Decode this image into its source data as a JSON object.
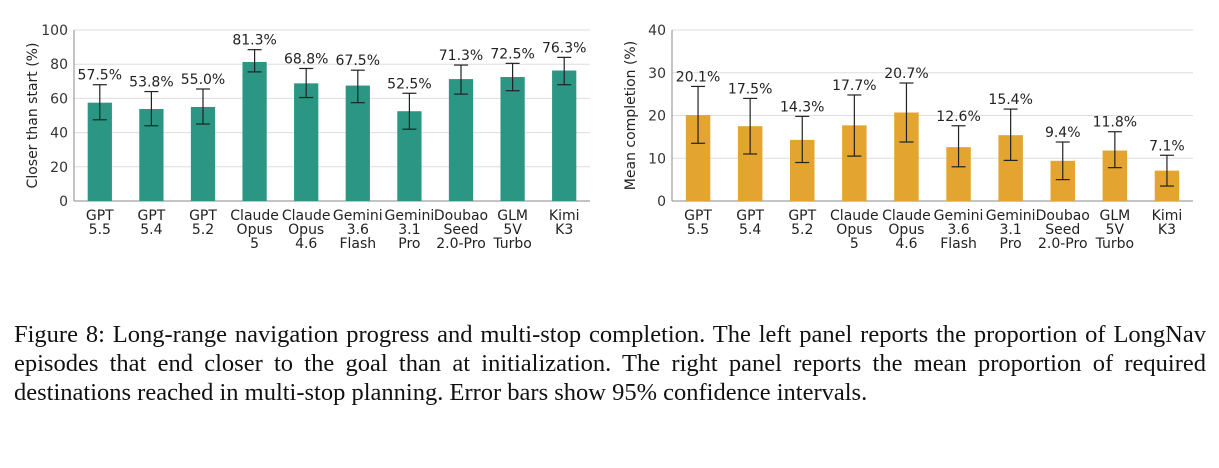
{
  "chart_data": [
    {
      "type": "bar",
      "categories": [
        [
          "GPT",
          "5.5"
        ],
        [
          "GPT",
          "5.4"
        ],
        [
          "GPT",
          "5.2"
        ],
        [
          "Claude",
          "Opus",
          "5"
        ],
        [
          "Claude",
          "Opus",
          "4.6"
        ],
        [
          "Gemini",
          "3.6",
          "Flash"
        ],
        [
          "Gemini",
          "3.1",
          "Pro"
        ],
        [
          "Doubao",
          "Seed",
          "2.0-Pro"
        ],
        [
          "GLM",
          "5V",
          "Turbo"
        ],
        [
          "Kimi",
          "K3"
        ]
      ],
      "values": [
        57.5,
        53.8,
        55.0,
        81.3,
        68.8,
        67.5,
        52.5,
        71.3,
        72.5,
        76.3
      ],
      "value_labels": [
        "57.5%",
        "53.8%",
        "55.0%",
        "81.3%",
        "68.8%",
        "67.5%",
        "52.5%",
        "71.3%",
        "72.5%",
        "76.3%"
      ],
      "error_low": [
        47.5,
        44.0,
        45.0,
        75.5,
        60.5,
        57.5,
        42.0,
        62.5,
        64.5,
        68.0
      ],
      "error_high": [
        68.0,
        64.0,
        65.5,
        88.5,
        77.5,
        76.5,
        63.0,
        79.5,
        80.5,
        84.0
      ],
      "ylabel": "Closer than start (%)",
      "ylim": [
        0,
        100
      ],
      "yticks": [
        0,
        20,
        40,
        60,
        80,
        100
      ],
      "color": "#2a9683",
      "grid": true
    },
    {
      "type": "bar",
      "categories": [
        [
          "GPT",
          "5.5"
        ],
        [
          "GPT",
          "5.4"
        ],
        [
          "GPT",
          "5.2"
        ],
        [
          "Claude",
          "Opus",
          "5"
        ],
        [
          "Claude",
          "Opus",
          "4.6"
        ],
        [
          "Gemini",
          "3.6",
          "Flash"
        ],
        [
          "Gemini",
          "3.1",
          "Pro"
        ],
        [
          "Doubao",
          "Seed",
          "2.0-Pro"
        ],
        [
          "GLM",
          "5V",
          "Turbo"
        ],
        [
          "Kimi",
          "K3"
        ]
      ],
      "values": [
        20.1,
        17.5,
        14.3,
        17.7,
        20.7,
        12.6,
        15.4,
        9.4,
        11.8,
        7.1
      ],
      "value_labels": [
        "20.1%",
        "17.5%",
        "14.3%",
        "17.7%",
        "20.7%",
        "12.6%",
        "15.4%",
        "9.4%",
        "11.8%",
        "7.1%"
      ],
      "error_low": [
        13.5,
        11.0,
        9.0,
        10.5,
        13.8,
        8.0,
        9.5,
        5.0,
        7.8,
        3.5
      ],
      "error_high": [
        26.8,
        24.0,
        19.8,
        24.8,
        27.6,
        17.6,
        21.5,
        13.8,
        16.2,
        10.7
      ],
      "ylabel": "Mean completion (%)",
      "ylim": [
        0,
        40
      ],
      "yticks": [
        0,
        10,
        20,
        30,
        40
      ],
      "color": "#e3a52f",
      "grid": true
    }
  ],
  "caption": "Figure 8: Long-range navigation progress and multi-stop completion. The left panel reports the proportion of LongNav episodes that end closer to the goal than at initialization. The right panel reports the mean proportion of required destinations reached in multi-stop planning. Error bars show 95% confidence intervals."
}
